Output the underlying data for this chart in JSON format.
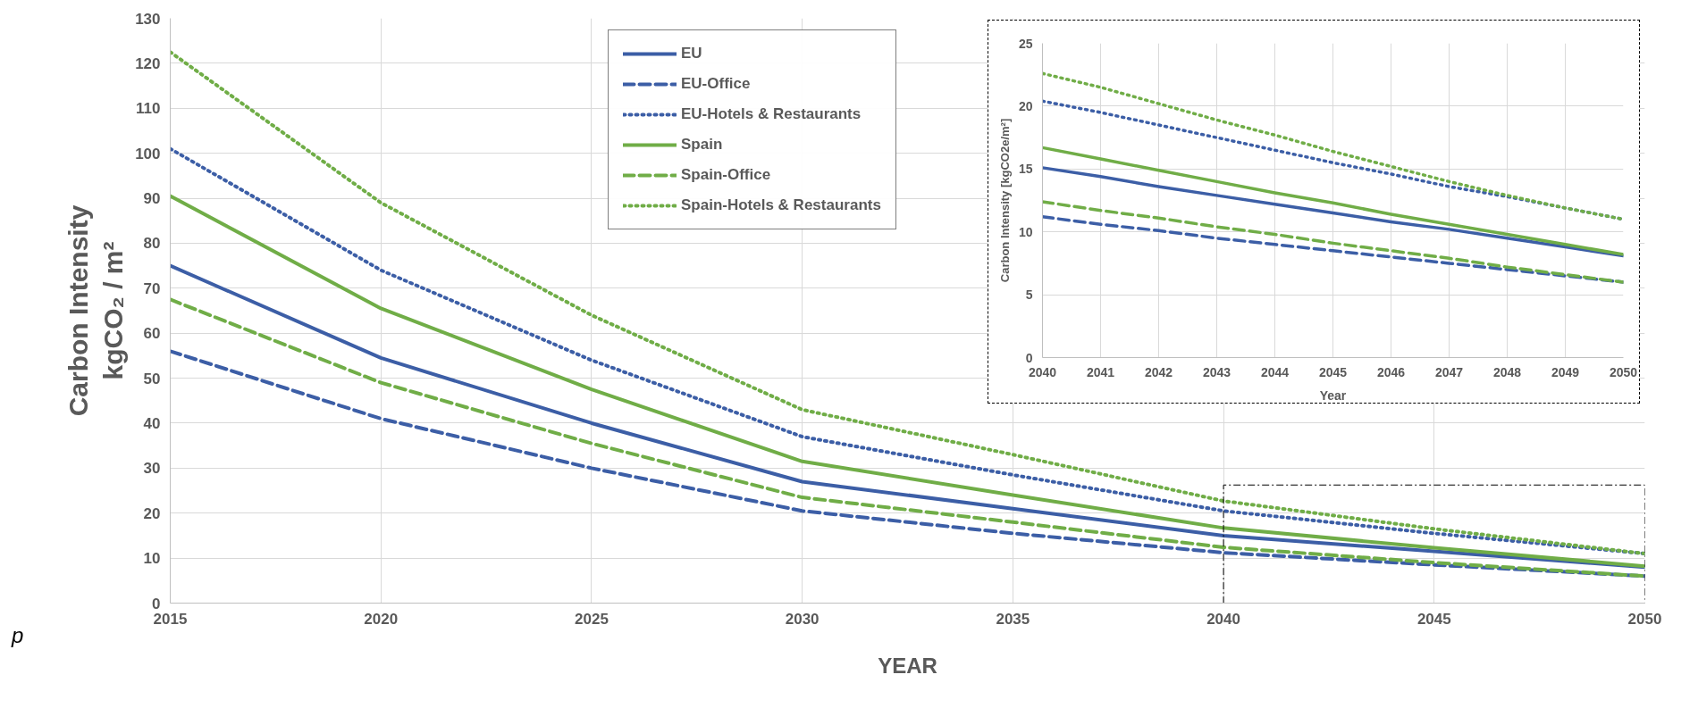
{
  "chart_data": [
    {
      "type": "line",
      "xlabel": "YEAR",
      "ylabel": "Carbon Intensity\nkgCO₂ / m²",
      "x": [
        2015,
        2020,
        2025,
        2030,
        2035,
        2040,
        2045,
        2050
      ],
      "xlim": [
        2015,
        2050
      ],
      "xticks": [
        2015,
        2020,
        2025,
        2030,
        2035,
        2040,
        2045,
        2050
      ],
      "ylim": [
        0,
        130
      ],
      "yticks": [
        0,
        10,
        20,
        30,
        40,
        50,
        60,
        70,
        80,
        90,
        100,
        110,
        120,
        130
      ],
      "grid": true,
      "legend": "top",
      "annotations": [
        "p"
      ],
      "series": [
        {
          "name": "EU",
          "color": "#3c5ea6",
          "line_style": "solid",
          "values": [
            75,
            54.5,
            40,
            27,
            21,
            15,
            11.5,
            8
          ]
        },
        {
          "name": "EU-Office",
          "color": "#3c5ea6",
          "line_style": "dashed",
          "values": [
            56,
            41,
            30,
            20.5,
            15.5,
            11.2,
            8.5,
            6
          ]
        },
        {
          "name": "EU-Hotels & Restaurants",
          "color": "#3c5ea6",
          "line_style": "dotted",
          "values": [
            101,
            74,
            54,
            37,
            28.5,
            20.5,
            15.5,
            11
          ]
        },
        {
          "name": "Spain",
          "color": "#70ad47",
          "line_style": "solid",
          "values": [
            90.5,
            65.5,
            47.5,
            31.5,
            24,
            16.7,
            12.3,
            8.2
          ]
        },
        {
          "name": "Spain-Office",
          "color": "#70ad47",
          "line_style": "dashed",
          "values": [
            67.5,
            49,
            35.5,
            23.5,
            18,
            12.4,
            9,
            6
          ]
        },
        {
          "name": "Spain-Hotels & Restaurants",
          "color": "#70ad47",
          "line_style": "dotted",
          "values": [
            122.5,
            89,
            64,
            43,
            33,
            22.7,
            16.5,
            11
          ]
        }
      ]
    },
    {
      "type": "line",
      "xlabel": "Year",
      "ylabel": "Carbon Intensity [kgCO2e/m²]",
      "x": [
        2040,
        2041,
        2042,
        2043,
        2044,
        2045,
        2046,
        2047,
        2048,
        2049,
        2050
      ],
      "xlim": [
        2040,
        2050
      ],
      "xticks": [
        2040,
        2041,
        2042,
        2043,
        2044,
        2045,
        2046,
        2047,
        2048,
        2049,
        2050
      ],
      "ylim": [
        0,
        25
      ],
      "yticks": [
        0,
        5,
        10,
        15,
        20,
        25
      ],
      "grid": true,
      "series": [
        {
          "color": "#3c5ea6",
          "line_style": "solid",
          "values": [
            15.1,
            14.4,
            13.6,
            12.9,
            12.2,
            11.5,
            10.8,
            10.2,
            9.5,
            8.8,
            8.1
          ]
        },
        {
          "color": "#3c5ea6",
          "line_style": "dashed",
          "values": [
            11.2,
            10.6,
            10.1,
            9.5,
            9.0,
            8.5,
            8.0,
            7.5,
            7.0,
            6.5,
            6.0
          ]
        },
        {
          "color": "#3c5ea6",
          "line_style": "dotted",
          "values": [
            20.4,
            19.5,
            18.5,
            17.5,
            16.5,
            15.5,
            14.6,
            13.6,
            12.8,
            11.9,
            11.0
          ]
        },
        {
          "color": "#70ad47",
          "line_style": "solid",
          "values": [
            16.7,
            15.8,
            14.9,
            14.0,
            13.1,
            12.3,
            11.4,
            10.6,
            9.8,
            9.0,
            8.2
          ]
        },
        {
          "color": "#70ad47",
          "line_style": "dashed",
          "values": [
            12.4,
            11.7,
            11.1,
            10.4,
            9.8,
            9.1,
            8.5,
            7.9,
            7.2,
            6.6,
            6.0
          ]
        },
        {
          "color": "#70ad47",
          "line_style": "dotted",
          "values": [
            22.6,
            21.5,
            20.2,
            18.9,
            17.7,
            16.4,
            15.2,
            14.0,
            12.9,
            11.9,
            11.0
          ]
        }
      ]
    }
  ]
}
